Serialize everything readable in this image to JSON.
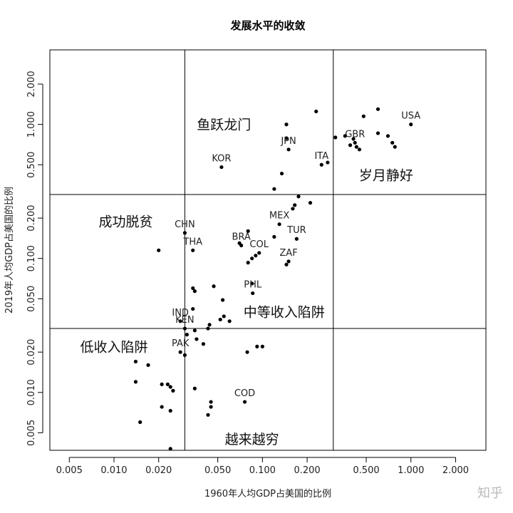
{
  "chart_data": {
    "type": "scatter",
    "title": "发展水平的收敛",
    "xlabel": "1960年人均GDP占美国的比例",
    "ylabel": "2019年人均GDP占美国的比例",
    "scale": "log-log",
    "xlim": [
      0.0037,
      3.2
    ],
    "ylim": [
      0.0037,
      3.6
    ],
    "x_ticks": [
      "0.005",
      "0.010",
      "0.020",
      "0.050",
      "0.100",
      "0.200",
      "0.500",
      "1.000",
      "2.000"
    ],
    "y_ticks": [
      "0.005",
      "0.010",
      "0.020",
      "0.050",
      "0.100",
      "0.200",
      "0.500",
      "1.000",
      "2.000"
    ],
    "vlines": [
      0.03,
      0.3
    ],
    "hlines": [
      0.03,
      0.3
    ],
    "regions": [
      {
        "label": "鱼跃龙门",
        "x": 0.055,
        "y": 1.0
      },
      {
        "label": "岁月静好",
        "x": 0.68,
        "y": 0.42
      },
      {
        "label": "成功脱贫",
        "x": 0.012,
        "y": 0.19
      },
      {
        "label": "中等收入陷阱",
        "x": 0.14,
        "y": 0.04
      },
      {
        "label": "低收入陷阱",
        "x": 0.01,
        "y": 0.022
      },
      {
        "label": "越来越穷",
        "x": 0.085,
        "y": 0.0045
      }
    ],
    "points": [
      {
        "x": 1.0,
        "y": 1.0,
        "label": "USA"
      },
      {
        "x": 0.42,
        "y": 0.73,
        "label": "GBR"
      },
      {
        "x": 0.25,
        "y": 0.5,
        "label": "ITA"
      },
      {
        "x": 0.15,
        "y": 0.65,
        "label": "JPN"
      },
      {
        "x": 0.053,
        "y": 0.48,
        "label": "KOR"
      },
      {
        "x": 0.03,
        "y": 0.155,
        "label": "CHN"
      },
      {
        "x": 0.034,
        "y": 0.115,
        "label": "THA"
      },
      {
        "x": 0.072,
        "y": 0.125,
        "label": "BRA"
      },
      {
        "x": 0.13,
        "y": 0.18,
        "label": "MEX"
      },
      {
        "x": 0.17,
        "y": 0.14,
        "label": "TUR"
      },
      {
        "x": 0.095,
        "y": 0.11,
        "label": "COL"
      },
      {
        "x": 0.15,
        "y": 0.095,
        "label": "ZAF"
      },
      {
        "x": 0.086,
        "y": 0.055,
        "label": "PHL"
      },
      {
        "x": 0.028,
        "y": 0.034,
        "label": "IND"
      },
      {
        "x": 0.03,
        "y": 0.03,
        "label": "KEN"
      },
      {
        "x": 0.028,
        "y": 0.02,
        "label": "PAK"
      },
      {
        "x": 0.076,
        "y": 0.0085,
        "label": "COD"
      },
      {
        "x": 0.23,
        "y": 1.25
      },
      {
        "x": 0.145,
        "y": 1.0
      },
      {
        "x": 0.145,
        "y": 0.79
      },
      {
        "x": 0.275,
        "y": 0.52
      },
      {
        "x": 0.31,
        "y": 0.8
      },
      {
        "x": 0.36,
        "y": 0.82
      },
      {
        "x": 0.41,
        "y": 0.78
      },
      {
        "x": 0.39,
        "y": 0.7
      },
      {
        "x": 0.45,
        "y": 0.65
      },
      {
        "x": 0.43,
        "y": 0.68
      },
      {
        "x": 0.48,
        "y": 1.15
      },
      {
        "x": 0.6,
        "y": 1.3
      },
      {
        "x": 0.6,
        "y": 0.86
      },
      {
        "x": 0.7,
        "y": 0.82
      },
      {
        "x": 0.75,
        "y": 0.73
      },
      {
        "x": 0.78,
        "y": 0.68
      },
      {
        "x": 0.135,
        "y": 0.43
      },
      {
        "x": 0.12,
        "y": 0.33
      },
      {
        "x": 0.175,
        "y": 0.29
      },
      {
        "x": 0.165,
        "y": 0.25
      },
      {
        "x": 0.16,
        "y": 0.235
      },
      {
        "x": 0.21,
        "y": 0.26
      },
      {
        "x": 0.12,
        "y": 0.145
      },
      {
        "x": 0.07,
        "y": 0.13
      },
      {
        "x": 0.08,
        "y": 0.16
      },
      {
        "x": 0.09,
        "y": 0.105
      },
      {
        "x": 0.085,
        "y": 0.1
      },
      {
        "x": 0.08,
        "y": 0.093
      },
      {
        "x": 0.145,
        "y": 0.09
      },
      {
        "x": 0.085,
        "y": 0.065
      },
      {
        "x": 0.02,
        "y": 0.115
      },
      {
        "x": 0.034,
        "y": 0.06
      },
      {
        "x": 0.035,
        "y": 0.057
      },
      {
        "x": 0.047,
        "y": 0.062
      },
      {
        "x": 0.054,
        "y": 0.049
      },
      {
        "x": 0.034,
        "y": 0.042
      },
      {
        "x": 0.055,
        "y": 0.037
      },
      {
        "x": 0.052,
        "y": 0.035
      },
      {
        "x": 0.06,
        "y": 0.034
      },
      {
        "x": 0.044,
        "y": 0.032
      },
      {
        "x": 0.043,
        "y": 0.03
      },
      {
        "x": 0.035,
        "y": 0.029
      },
      {
        "x": 0.036,
        "y": 0.025
      },
      {
        "x": 0.031,
        "y": 0.027
      },
      {
        "x": 0.04,
        "y": 0.023
      },
      {
        "x": 0.03,
        "y": 0.019
      },
      {
        "x": 0.092,
        "y": 0.022
      },
      {
        "x": 0.1,
        "y": 0.022
      },
      {
        "x": 0.079,
        "y": 0.02
      },
      {
        "x": 0.014,
        "y": 0.017
      },
      {
        "x": 0.017,
        "y": 0.016
      },
      {
        "x": 0.014,
        "y": 0.012
      },
      {
        "x": 0.021,
        "y": 0.0115
      },
      {
        "x": 0.023,
        "y": 0.0115
      },
      {
        "x": 0.024,
        "y": 0.011
      },
      {
        "x": 0.025,
        "y": 0.0103
      },
      {
        "x": 0.035,
        "y": 0.0107
      },
      {
        "x": 0.021,
        "y": 0.0078
      },
      {
        "x": 0.024,
        "y": 0.0073
      },
      {
        "x": 0.045,
        "y": 0.0085
      },
      {
        "x": 0.045,
        "y": 0.0078
      },
      {
        "x": 0.043,
        "y": 0.0068
      },
      {
        "x": 0.015,
        "y": 0.006
      },
      {
        "x": 0.024,
        "y": 0.0038
      }
    ]
  },
  "watermark": "知乎"
}
